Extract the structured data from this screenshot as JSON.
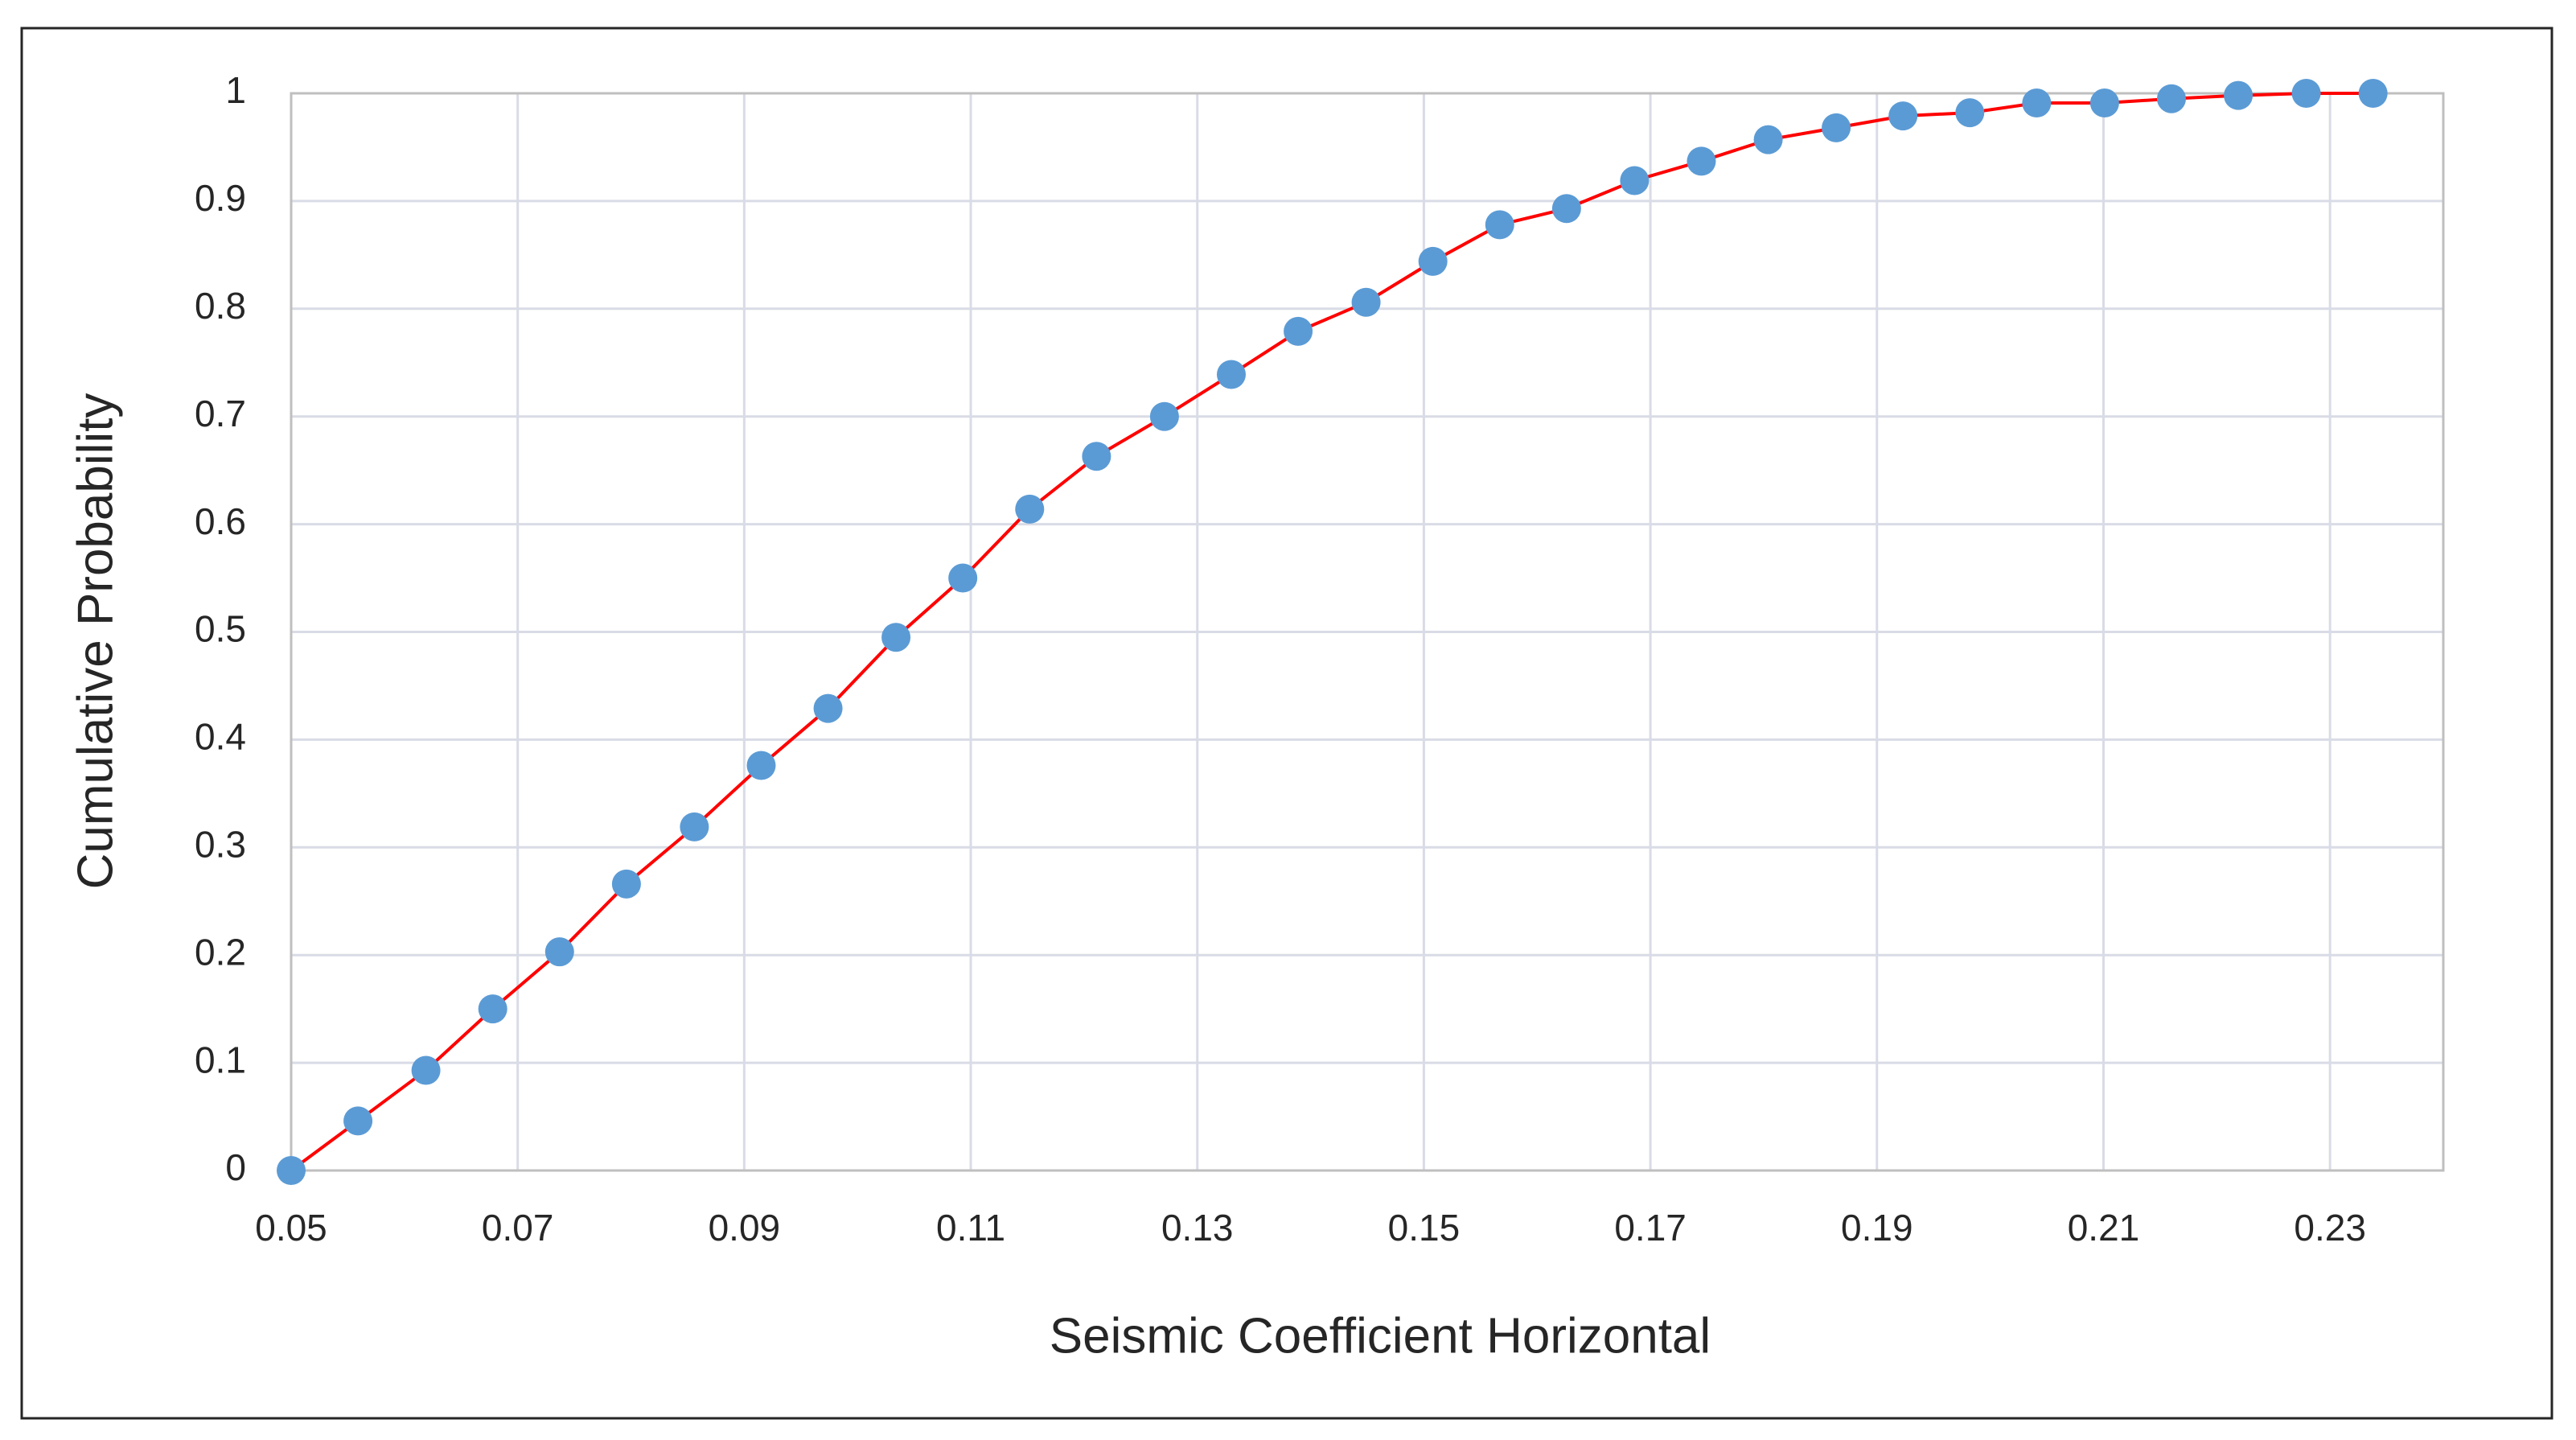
{
  "chart_data": {
    "type": "line",
    "x_label": "Seismic Coefficient Horizontal",
    "y_label": "Cumulative Probability",
    "x": [
      0.05,
      0.0559,
      0.0619,
      0.0678,
      0.0737,
      0.0796,
      0.0856,
      0.0915,
      0.0974,
      0.1034,
      0.1093,
      0.1152,
      0.1211,
      0.1271,
      0.133,
      0.1389,
      0.1449,
      0.1508,
      0.1567,
      0.1626,
      0.1686,
      0.1745,
      0.1804,
      0.1864,
      0.1923,
      0.1982,
      0.2041,
      0.2101,
      0.216,
      0.2219,
      0.2279,
      0.2338
    ],
    "series": [
      {
        "color": "#5b9bd5",
        "line_color": "#ff0000",
        "values": [
          0,
          0.046,
          0.093,
          0.15,
          0.203,
          0.266,
          0.319,
          0.376,
          0.429,
          0.495,
          0.55,
          0.614,
          0.663,
          0.7,
          0.739,
          0.779,
          0.806,
          0.844,
          0.878,
          0.893,
          0.919,
          0.937,
          0.957,
          0.968,
          0.979,
          0.982,
          0.991,
          0.991,
          0.995,
          0.998,
          1,
          1
        ]
      }
    ],
    "xlim": [
      0.05,
      0.24
    ],
    "ylim": [
      0,
      1
    ],
    "xticks": [
      0.05,
      0.07,
      0.09,
      0.11,
      0.13,
      0.15,
      0.17,
      0.19,
      0.21,
      0.23
    ],
    "yticks": [
      0,
      0.1,
      0.2,
      0.3,
      0.4,
      0.5,
      0.6,
      0.7,
      0.8,
      0.9,
      1
    ],
    "grid": true,
    "markers": true
  }
}
